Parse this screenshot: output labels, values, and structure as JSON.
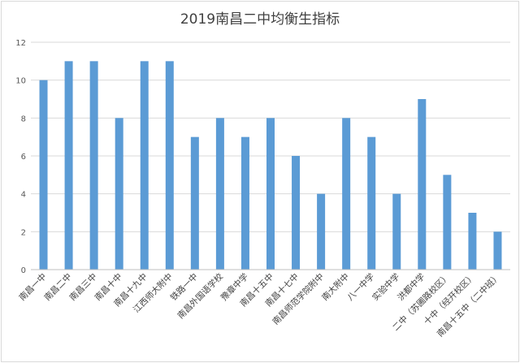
{
  "chart_data": {
    "type": "bar",
    "title": "2019南昌二中均衡生指标",
    "xlabel": "",
    "ylabel": "",
    "ylim": [
      0,
      12
    ],
    "yticks": [
      0,
      2,
      4,
      6,
      8,
      10,
      12
    ],
    "grid": true,
    "legend": "none",
    "bar_color": "#5b9bd5",
    "grid_color": "#d9d9d9",
    "categories": [
      "南昌一中",
      "南昌二中",
      "南昌三中",
      "南昌十中",
      "南昌十九中",
      "江西师大附中",
      "铁路一中",
      "南昌外国语学校",
      "豫章中学",
      "南昌十五中",
      "南昌十七中",
      "南昌师范学院附中",
      "南大附中",
      "八一中学",
      "实验中学",
      "洪都中学",
      "二中（苏圃路校区）",
      "十中（经开校区）",
      "南昌十五中（二中班）"
    ],
    "values": [
      10,
      11,
      11,
      8,
      11,
      11,
      7,
      8,
      7,
      8,
      6,
      4,
      8,
      7,
      4,
      9,
      5,
      3,
      2
    ]
  }
}
